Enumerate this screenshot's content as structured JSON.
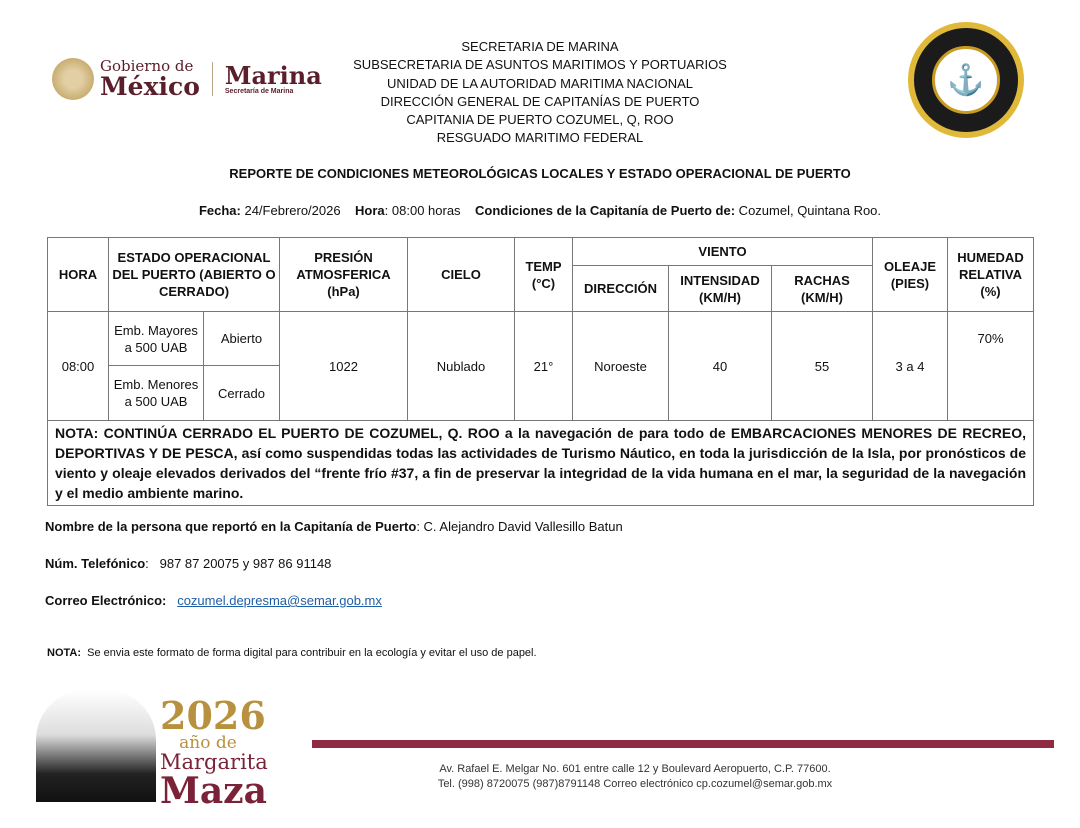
{
  "header": {
    "lines": [
      "SECRETARIA DE MARINA",
      "SUBSECRETARIA DE ASUNTOS MARITIMOS Y PORTUARIOS",
      "UNIDAD DE LA AUTORIDAD MARITIMA NACIONAL",
      "DIRECCIÓN GENERAL DE CAPITANÍAS DE PUERTO",
      "CAPITANIA DE PUERTO COZUMEL, Q, ROO",
      "RESGUADO MARITIMO FEDERAL"
    ]
  },
  "logo": {
    "gob_l1": "Gobierno de",
    "gob_l2": "México",
    "marina": "Marina",
    "marina_sub": "Secretaría de Marina"
  },
  "report": {
    "title": "REPORTE DE CONDICIONES METEOROLÓGICAS LOCALES Y ESTADO OPERACIONAL DE PUERTO",
    "fecha_label": "Fecha:",
    "fecha": " 24/Febrero/2026",
    "hora_label": "Hora",
    "hora": ": 08:00 horas",
    "cond_label": "Condiciones de la Capitanía de Puerto de:",
    "cond": " Cozumel, Quintana Roo."
  },
  "table": {
    "headers": {
      "hora": "HORA",
      "estado": "ESTADO OPERACIONAL DEL PUERTO (ABIERTO O CERRADO)",
      "presion": "PRESIÓN ATMOSFERICA (hPa)",
      "cielo": "CIELO",
      "temp": "TEMP (°C)",
      "viento": "VIENTO",
      "direccion": "DIRECCIÓN",
      "intensidad": "INTENSIDAD (KM/H)",
      "rachas": "RACHAS (KM/H)",
      "oleaje": "OLEAJE (PIES)",
      "humedad": "HUMEDAD RELATIVA (%)"
    },
    "row": {
      "hora": "08:00",
      "emb1": "Emb. Mayores a 500 UAB",
      "estado1": "Abierto",
      "emb2": "Emb. Menores a 500 UAB",
      "estado2": "Cerrado",
      "presion": "1022",
      "cielo": "Nublado",
      "temp": "21°",
      "direccion": "Noroeste",
      "intensidad": "40",
      "rachas": "55",
      "oleaje": "3 a 4",
      "humedad": "70%"
    },
    "nota": "NOTA: CONTINÚA CERRADO EL PUERTO DE COZUMEL, Q. ROO a la navegación de para todo de EMBARCACIONES MENORES DE RECREO, DEPORTIVAS Y DE PESCA, así como suspendidas todas las actividades de Turismo Náutico, en toda la jurisdicción de la Isla, por pronósticos de viento y oleaje elevados derivados del “frente frío #37, a fin de preservar la integridad de la vida humana en el mar, la seguridad de la navegación y el medio ambiente marino."
  },
  "contact": {
    "nombre_label": "Nombre de la persona que reportó en la Capitanía de Puerto",
    "nombre": ": C. Alejandro David Vallesillo Batun",
    "tel_label": "Núm. Telefónico",
    "tel": ":   987 87 20075 y 987 86 91148",
    "correo_label": "Correo Electrónico:",
    "correo": "cozumel.depresma@semar.gob.mx"
  },
  "nota2": {
    "label": "NOTA:",
    "text": "  Se envia este formato de forma digital para contribuir en la ecología y evitar el uso de papel."
  },
  "footer": {
    "year": "2026",
    "l2": "año de",
    "l3": "Margarita",
    "l4": "Maza",
    "addr1": "Av. Rafael E. Melgar No. 601 entre calle 12 y Boulevard Aeropuerto, C.P. 77600.",
    "addr2": "Tel. (998) 8720075 (987)8791148 Correo electrónico cp.cozumel@semar.gob.mx"
  },
  "colors": {
    "brand": "#5b1f2c",
    "bar": "#8e2b42",
    "gold": "#b8913f"
  }
}
